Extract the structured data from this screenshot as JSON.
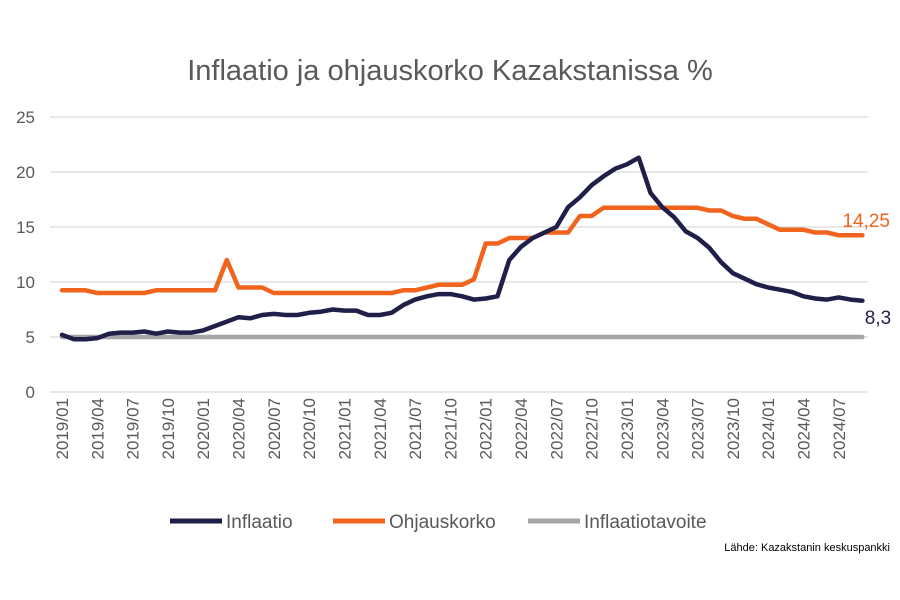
{
  "chart_data": {
    "type": "line",
    "title": "Inflaatio ja ohjauskorko Kazakstanissa %",
    "xlabel": "",
    "ylabel": "",
    "ylim": [
      0,
      25
    ],
    "yticks": [
      0,
      5,
      10,
      15,
      20,
      25
    ],
    "grid": true,
    "legend_position": "bottom",
    "start_month": "2019/01",
    "x_tick_labels": [
      "2019/01",
      "2019/04",
      "2019/07",
      "2019/10",
      "2020/01",
      "2020/04",
      "2020/07",
      "2020/10",
      "2021/01",
      "2021/04",
      "2021/07",
      "2021/10",
      "2022/01",
      "2022/04",
      "2022/07",
      "2022/10",
      "2023/01",
      "2023/04",
      "2023/07",
      "2023/10",
      "2024/01",
      "2024/04",
      "2024/07"
    ],
    "series": [
      {
        "name": "Inflaatio",
        "color": "#1f1f4a",
        "end_label": "8,3",
        "values": [
          5.2,
          4.8,
          4.8,
          4.9,
          5.3,
          5.4,
          5.4,
          5.5,
          5.3,
          5.5,
          5.4,
          5.4,
          5.6,
          6.0,
          6.4,
          6.8,
          6.7,
          7.0,
          7.1,
          7.0,
          7.0,
          7.2,
          7.3,
          7.5,
          7.4,
          7.4,
          7.0,
          7.0,
          7.2,
          7.9,
          8.4,
          8.7,
          8.9,
          8.9,
          8.7,
          8.4,
          8.5,
          8.7,
          12.0,
          13.2,
          14.0,
          14.5,
          15.0,
          16.8,
          17.7,
          18.8,
          19.6,
          20.3,
          20.7,
          21.3,
          18.1,
          16.8,
          15.9,
          14.6,
          14.0,
          13.1,
          11.8,
          10.8,
          10.3,
          9.8,
          9.5,
          9.3,
          9.1,
          8.7,
          8.5,
          8.4,
          8.6,
          8.4,
          8.3
        ]
      },
      {
        "name": "Ohjauskorko",
        "color": "#f0641e",
        "end_label": "14,25",
        "values": [
          9.25,
          9.25,
          9.25,
          9.0,
          9.0,
          9.0,
          9.0,
          9.0,
          9.25,
          9.25,
          9.25,
          9.25,
          9.25,
          9.25,
          12.0,
          9.5,
          9.5,
          9.5,
          9.0,
          9.0,
          9.0,
          9.0,
          9.0,
          9.0,
          9.0,
          9.0,
          9.0,
          9.0,
          9.0,
          9.25,
          9.25,
          9.5,
          9.75,
          9.75,
          9.75,
          10.25,
          13.5,
          13.5,
          14.0,
          14.0,
          14.0,
          14.5,
          14.5,
          14.5,
          16.0,
          16.0,
          16.75,
          16.75,
          16.75,
          16.75,
          16.75,
          16.75,
          16.75,
          16.75,
          16.75,
          16.5,
          16.5,
          16.0,
          15.75,
          15.75,
          15.25,
          14.75,
          14.75,
          14.75,
          14.5,
          14.5,
          14.25,
          14.25,
          14.25
        ]
      },
      {
        "name": "Inflaatiotavoite",
        "color": "#a6a6a6",
        "end_label": "",
        "values": [
          5,
          5,
          5,
          5,
          5,
          5,
          5,
          5,
          5,
          5,
          5,
          5,
          5,
          5,
          5,
          5,
          5,
          5,
          5,
          5,
          5,
          5,
          5,
          5,
          5,
          5,
          5,
          5,
          5,
          5,
          5,
          5,
          5,
          5,
          5,
          5,
          5,
          5,
          5,
          5,
          5,
          5,
          5,
          5,
          5,
          5,
          5,
          5,
          5,
          5,
          5,
          5,
          5,
          5,
          5,
          5,
          5,
          5,
          5,
          5,
          5,
          5,
          5,
          5,
          5,
          5,
          5,
          5,
          5
        ]
      }
    ],
    "source": "Lähde: Kazakstanin keskuspankki"
  }
}
